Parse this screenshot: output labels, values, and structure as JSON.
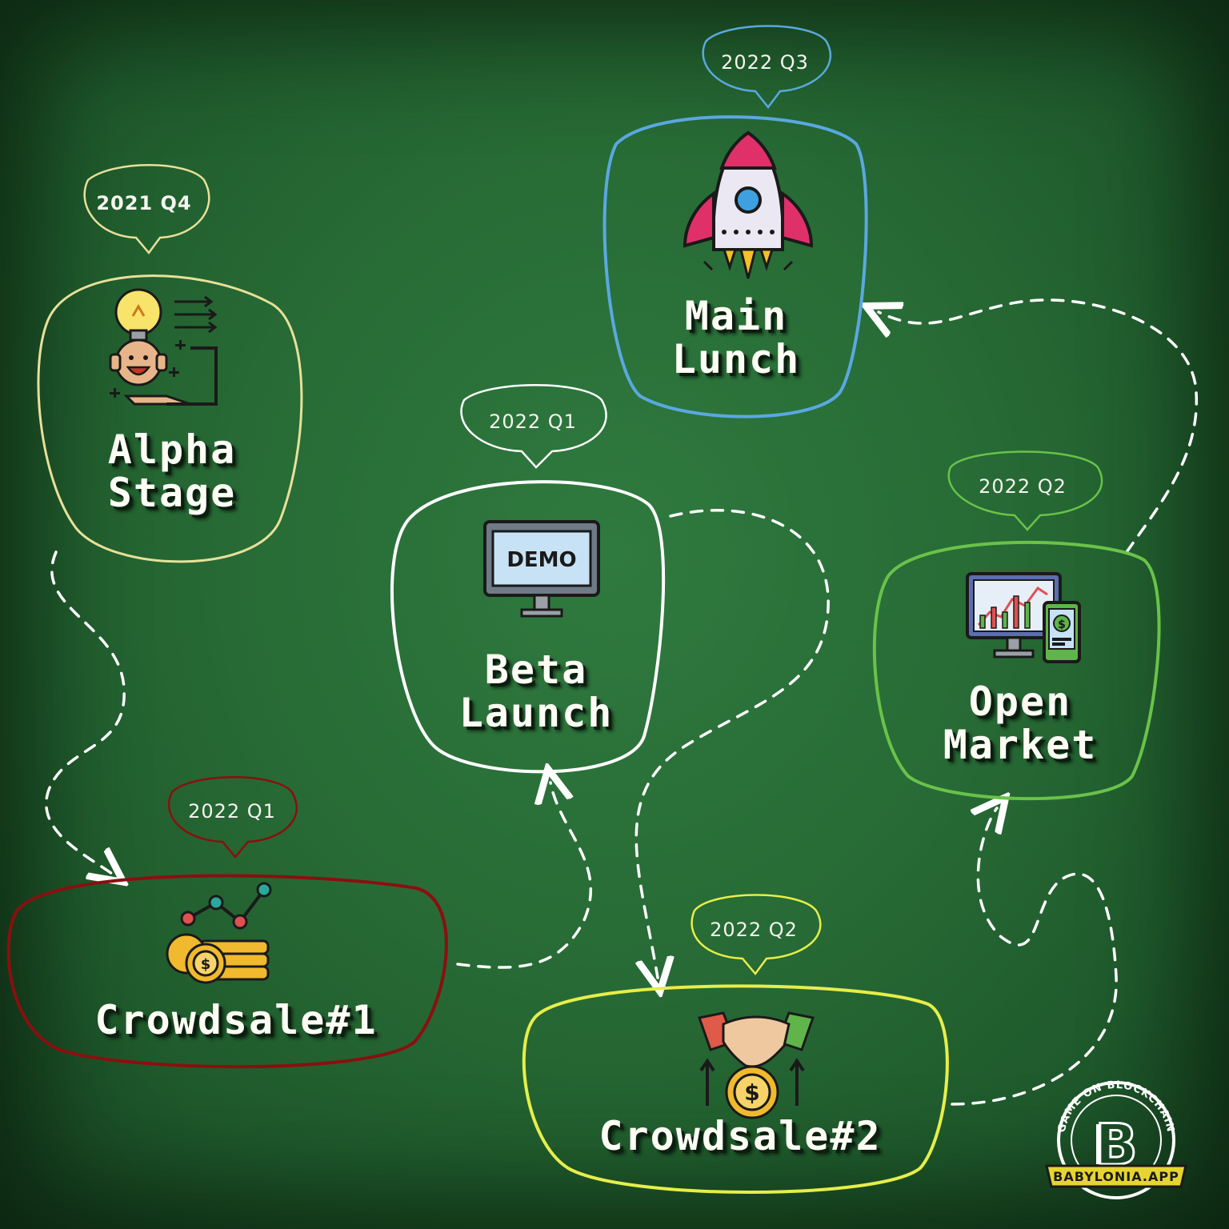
{
  "stages": [
    {
      "id": "alpha",
      "title": "Alpha\nStage",
      "date": "2021 Q4",
      "color": "#e8e09a"
    },
    {
      "id": "crowdsale1",
      "title": "Crowdsale#1",
      "date": "2022 Q1",
      "color": "#8b0f0f"
    },
    {
      "id": "beta",
      "title": "Beta\nLaunch",
      "date": "2022 Q1",
      "color": "#ffffff"
    },
    {
      "id": "crowdsale2",
      "title": "Crowdsale#2",
      "date": "2022 Q2",
      "color": "#e6ee4a"
    },
    {
      "id": "market",
      "title": "Open\nMarket",
      "date": "2022 Q2",
      "color": "#6ac24a"
    },
    {
      "id": "main",
      "title": "Main\nLunch",
      "date": "2022 Q3",
      "color": "#5aa8e0"
    }
  ],
  "icons": {
    "demo_label": "DEMO",
    "alpha": "idea-person-icon",
    "crowdsale1": "coins-chart-icon",
    "beta": "demo-monitor-icon",
    "crowdsale2": "handshake-coin-icon",
    "market": "trading-chart-icon",
    "main": "rocket-icon"
  },
  "logo": {
    "ring_text": "GAME ON BLOCKCHAIN",
    "banner_text": "BABYLONIA.APP",
    "monogram": "B"
  }
}
